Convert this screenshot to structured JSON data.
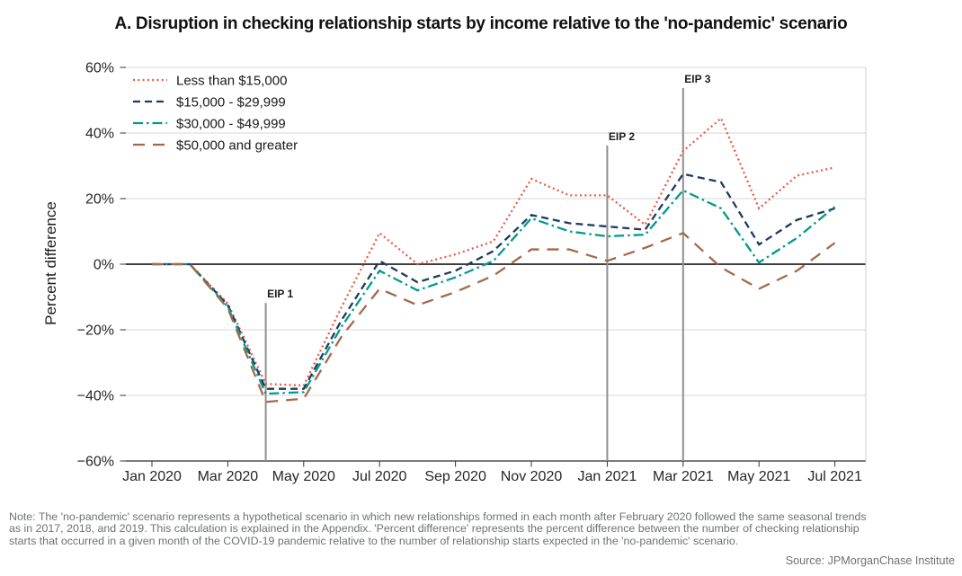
{
  "title": "A. Disruption in checking relationship starts by income relative to the 'no-pandemic' scenario",
  "chart_data": {
    "type": "line",
    "x": [
      "Jan 2020",
      "Feb 2020",
      "Mar 2020",
      "Apr 2020",
      "May 2020",
      "Jun 2020",
      "Jul 2020",
      "Aug 2020",
      "Sep 2020",
      "Oct 2020",
      "Nov 2020",
      "Dec 2020",
      "Jan 2021",
      "Feb 2021",
      "Mar 2021",
      "Apr 2021",
      "May 2021",
      "Jun 2021",
      "Jul 2021"
    ],
    "x_tick_labels": [
      "Jan 2020",
      "Mar 2020",
      "May 2020",
      "Jul 2020",
      "Sep 2020",
      "Nov 2020",
      "Jan 2021",
      "Mar 2021",
      "May 2021",
      "Jul 2021"
    ],
    "ylabel": "Percent difference",
    "ylim": [
      -60,
      60
    ],
    "yticks": [
      60,
      40,
      20,
      0,
      -20,
      -40,
      -60
    ],
    "ytick_suffix": "%",
    "grid": true,
    "legend_position": "top-left",
    "series": [
      {
        "name": "Less than $15,000",
        "color": "#ea5a42",
        "dash": "dotted",
        "values": [
          0,
          0,
          -12,
          -36.5,
          -37,
          -13,
          9.5,
          0,
          3,
          7,
          26,
          21,
          21,
          12,
          34.5,
          44.5,
          17,
          27,
          29.5
        ]
      },
      {
        "name": "$15,000 - $29,999",
        "color": "#1f3a5f",
        "dash": "dashed",
        "values": [
          0,
          0,
          -12.5,
          -38,
          -38,
          -17,
          1,
          -5.5,
          -2,
          4,
          15,
          12.5,
          11.5,
          10.5,
          27.5,
          25,
          6,
          13.5,
          17
        ]
      },
      {
        "name": "$30,000 - $49,999",
        "color": "#009a8c",
        "dash": "dashdot",
        "values": [
          0,
          0,
          -13,
          -39.5,
          -39,
          -19,
          -2,
          -8,
          -4,
          1,
          14,
          10,
          8.5,
          9,
          22.5,
          17,
          0.5,
          8,
          17.5
        ]
      },
      {
        "name": "$50,000 and greater",
        "color": "#a4694a",
        "dash": "longdash",
        "values": [
          0,
          0,
          -13.5,
          -42,
          -41,
          -22,
          -7.5,
          -12.5,
          -8.5,
          -3.5,
          4.5,
          4.5,
          1,
          5,
          9.5,
          -1,
          -7.5,
          -2,
          6.5
        ]
      }
    ],
    "annotations": [
      {
        "label": "EIP 1",
        "x": "Apr 2020",
        "line_top_pct": -11.8
      },
      {
        "label": "EIP 2",
        "x": "Jan 2021",
        "line_top_pct": 36.2
      },
      {
        "label": "EIP 3",
        "x": "Mar 2021",
        "line_top_pct": 53.7
      }
    ]
  },
  "note_lines": [
    "Note: The 'no-pandemic' scenario represents a hypothetical scenario in which new relationships formed in each month after February 2020 followed the same seasonal trends",
    "as in 2017, 2018, and 2019. This calculation is explained in the Appendix. 'Percent difference' represents the percent difference between the number of checking relationship",
    "starts that occurred in a given month of the COVID-19 pandemic relative to the number of relationship starts expected in the 'no-pandemic' scenario."
  ],
  "source": "Source: JPMorganChase Institute"
}
